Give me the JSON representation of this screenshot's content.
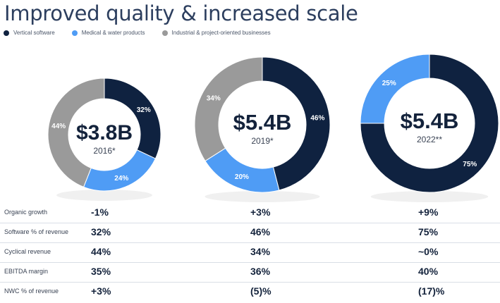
{
  "title": "Improved quality & increased scale",
  "legend": [
    {
      "label": "Vertical software",
      "color": "#0f2240"
    },
    {
      "label": "Medical & water products",
      "color": "#4f9cf5"
    },
    {
      "label": "Industrial & project-oriented businesses",
      "color": "#9a9a9a"
    }
  ],
  "chart_data": [
    {
      "type": "pie",
      "donut": true,
      "center_value": "$3.8B",
      "center_label": "2016*",
      "labels": [
        "Vertical software",
        "Medical & water products",
        "Industrial & project-oriented businesses"
      ],
      "values": [
        32,
        24,
        44
      ],
      "value_labels": [
        "32%",
        "24%",
        "44%"
      ]
    },
    {
      "type": "pie",
      "donut": true,
      "center_value": "$5.4B",
      "center_label": "2019*",
      "labels": [
        "Vertical software",
        "Medical & water products",
        "Industrial & project-oriented businesses"
      ],
      "values": [
        46,
        20,
        34
      ],
      "value_labels": [
        "46%",
        "20%",
        "34%"
      ]
    },
    {
      "type": "pie",
      "donut": true,
      "center_value": "$5.4B",
      "center_label": "2022**",
      "labels": [
        "Vertical software",
        "Medical & water products"
      ],
      "values": [
        75,
        25
      ],
      "value_labels": [
        "75%",
        "25%"
      ]
    }
  ],
  "stats": [
    {
      "label": "Organic growth",
      "values": [
        "-1%",
        "+3%",
        "+9%"
      ]
    },
    {
      "label": "Software % of revenue",
      "values": [
        "32%",
        "46%",
        "75%"
      ]
    },
    {
      "label": "Cyclical revenue",
      "values": [
        "44%",
        "34%",
        "~0%"
      ]
    },
    {
      "label": "EBITDA margin",
      "values": [
        "35%",
        "36%",
        "40%"
      ]
    },
    {
      "label": "NWC % of revenue",
      "values": [
        "+3%",
        "(5)%",
        "(17)%"
      ]
    }
  ]
}
